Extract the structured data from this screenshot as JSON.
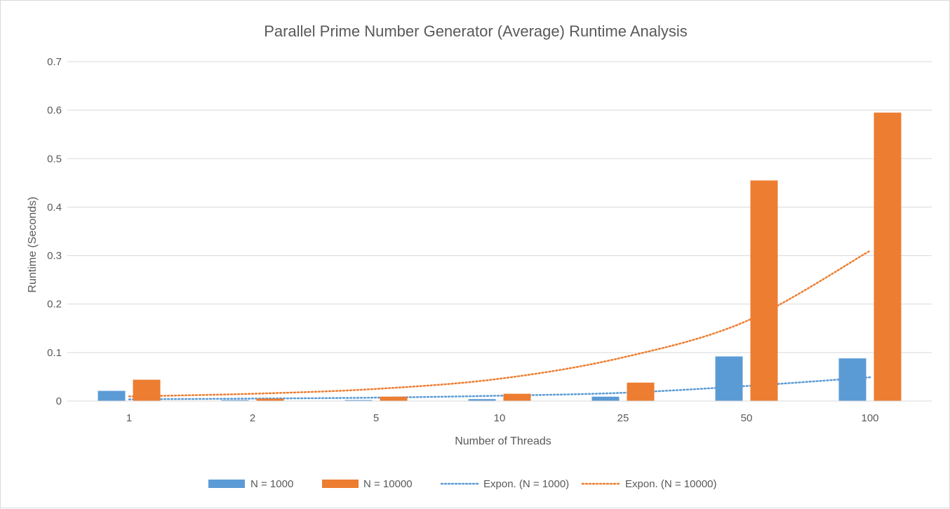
{
  "chart_data": {
    "type": "bar",
    "title": "Parallel Prime Number Generator (Average) Runtime Analysis",
    "xlabel": "Number of Threads",
    "ylabel": "Runtime (Seconds)",
    "categories": [
      "1",
      "2",
      "5",
      "10",
      "25",
      "50",
      "100"
    ],
    "ylim": [
      0,
      0.7
    ],
    "yticks": [
      0,
      0.1,
      0.2,
      0.3,
      0.4,
      0.5,
      0.6,
      0.7
    ],
    "ytick_labels": [
      "0",
      "0.1",
      "0.2",
      "0.3",
      "0.4",
      "0.5",
      "0.6",
      "0.7"
    ],
    "grid": "horizontal",
    "legend_position": "bottom",
    "series": [
      {
        "name": "N = 1000",
        "color": "#5b9bd5",
        "values": [
          0.021,
          0.002,
          0.002,
          0.004,
          0.009,
          0.092,
          0.088
        ]
      },
      {
        "name": "N = 10000",
        "color": "#ed7d31",
        "values": [
          0.044,
          0.005,
          0.009,
          0.015,
          0.038,
          0.455,
          0.595
        ]
      }
    ],
    "trendlines": [
      {
        "name": "Expon.  (N = 1000)",
        "type": "exponential",
        "style": "dotted",
        "color": "#5b9bd5",
        "values": [
          0.0035,
          0.005,
          0.007,
          0.011,
          0.017,
          0.031,
          0.049
        ]
      },
      {
        "name": "Expon.  (N = 10000)",
        "type": "exponential",
        "style": "dotted",
        "color": "#ed7d31",
        "values": [
          0.0095,
          0.015,
          0.025,
          0.046,
          0.09,
          0.165,
          0.31
        ]
      }
    ]
  }
}
